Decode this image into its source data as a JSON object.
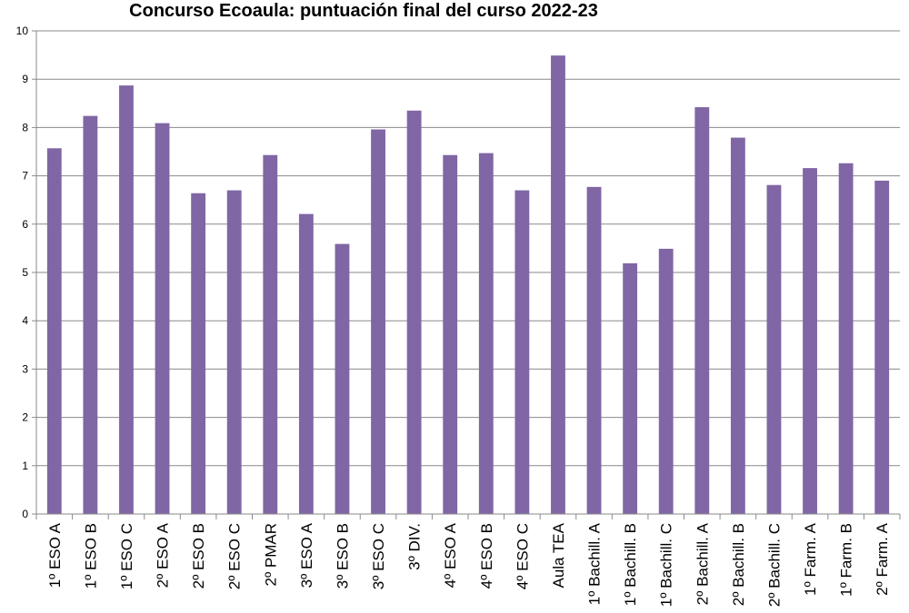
{
  "chart_data": {
    "type": "bar",
    "title": "Concurso Ecoaula: puntuación final del curso 2022-23",
    "xlabel": "",
    "ylabel": "",
    "ylim": [
      0,
      10
    ],
    "yticks": [
      0,
      1,
      2,
      3,
      4,
      5,
      6,
      7,
      8,
      9,
      10
    ],
    "grid": true,
    "legend": "none",
    "bar_color": "#8066a4",
    "categories": [
      "1º ESO A",
      "1º ESO B",
      "1º ESO C",
      "2º ESO A",
      "2º ESO B",
      "2º ESO C",
      "2º PMAR",
      "3º ESO A",
      "3º ESO B",
      "3º ESO C",
      "3º DIV.",
      "4º ESO A",
      "4º ESO B",
      "4º ESO C",
      "Aula TEA",
      "1º Bachill. A",
      "1º Bachill. B",
      "1º Bachill. C",
      "2º Bachill. A",
      "2º Bachill. B",
      "2º Bachill. C",
      "1º Farm. A",
      "1º Farm. B",
      "2º Farm. A"
    ],
    "values": [
      7.57,
      8.24,
      8.87,
      8.09,
      6.64,
      6.7,
      7.43,
      6.21,
      5.59,
      7.96,
      8.35,
      7.43,
      7.47,
      6.7,
      9.49,
      6.77,
      5.19,
      5.49,
      8.42,
      7.79,
      6.81,
      7.16,
      7.26,
      6.9
    ]
  }
}
